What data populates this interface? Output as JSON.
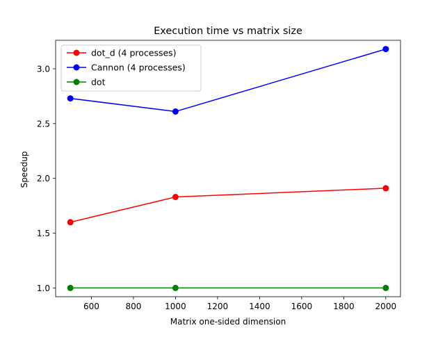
{
  "chart_data": {
    "type": "line",
    "title": "Execution time vs matrix size",
    "xlabel": "Matrix one-sided dimension",
    "ylabel": "Speedup",
    "x": [
      500,
      1000,
      2000
    ],
    "xlim": [
      430,
      2070
    ],
    "ylim": [
      0.92,
      3.26
    ],
    "xticks": [
      600,
      800,
      1000,
      1200,
      1400,
      1600,
      1800,
      2000
    ],
    "yticks": [
      1.0,
      1.5,
      2.0,
      2.5,
      3.0
    ],
    "ytick_labels": [
      "1.0",
      "1.5",
      "2.0",
      "2.5",
      "3.0"
    ],
    "grid": false,
    "legend_position": "top-left",
    "series": [
      {
        "name": "dot_d (4 processes)",
        "color": "#ff0000",
        "marker": "circle",
        "values": [
          1.6,
          1.83,
          1.91
        ]
      },
      {
        "name": "Cannon (4 processes)",
        "color": "#0000ff",
        "marker": "circle",
        "values": [
          2.73,
          2.61,
          3.18
        ]
      },
      {
        "name": "dot",
        "color": "#008000",
        "marker": "circle",
        "values": [
          1.0,
          1.0,
          1.0
        ]
      }
    ]
  }
}
